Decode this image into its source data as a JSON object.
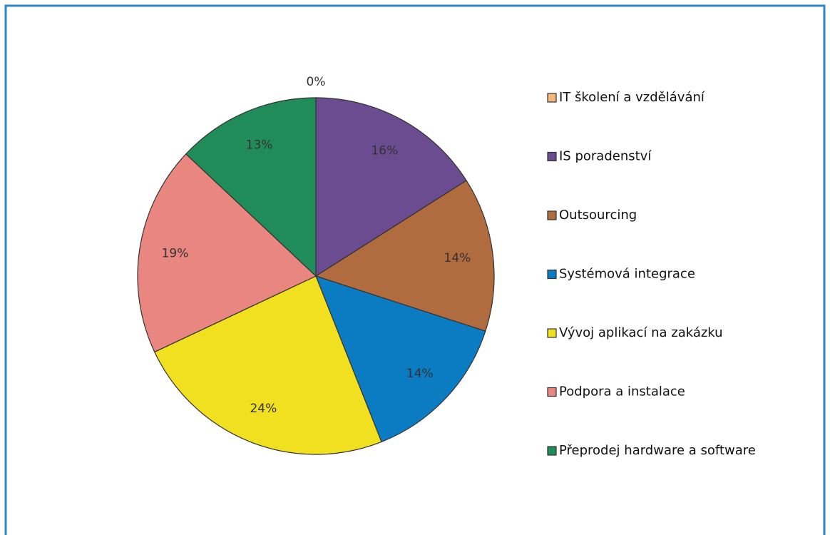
{
  "chart_data": {
    "type": "pie",
    "categories": [
      "IT školení a vzdělávání",
      "IS poradenství",
      "Outsourcing",
      "Systémová integrace",
      "Vývoj aplikací na zakázku",
      "Podpora a instalace",
      "Přeprodej hardware a software"
    ],
    "values": [
      0,
      16,
      14,
      14,
      24,
      19,
      13
    ],
    "value_labels": [
      "0%",
      "16%",
      "14%",
      "14%",
      "24%",
      "19%",
      "13%"
    ],
    "colors": [
      "#f2b77a",
      "#6b4c91",
      "#b06b3e",
      "#0b7cc2",
      "#f1e01f",
      "#e8867f",
      "#1f8c5a"
    ],
    "legend": "right"
  }
}
